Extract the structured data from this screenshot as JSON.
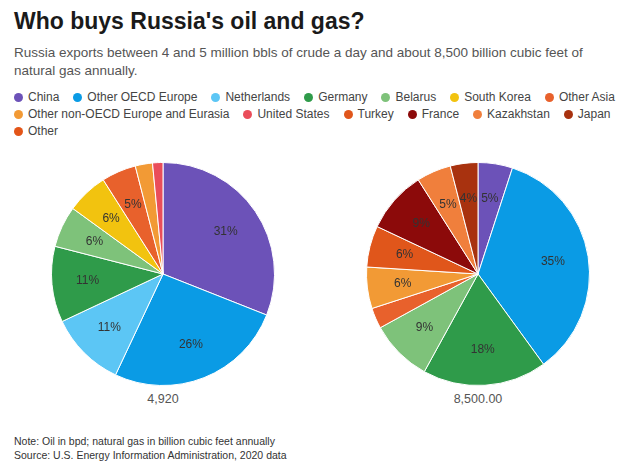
{
  "title": "Who buys Russia's oil and gas?",
  "subtitle": "Russia exports between 4 and 5 million bbls of crude a day and about 8,500 billion cubic feet of natural gas annually.",
  "legend_entries": [
    {
      "name": "China",
      "color": "#6c52b8"
    },
    {
      "name": "Other OECD Europe",
      "color": "#0a9be5"
    },
    {
      "name": "Netherlands",
      "color": "#5cc6f5"
    },
    {
      "name": "Germany",
      "color": "#2f9b4a"
    },
    {
      "name": "Belarus",
      "color": "#7ec27a"
    },
    {
      "name": "South Korea",
      "color": "#f2c30f"
    },
    {
      "name": "Other Asia",
      "color": "#e8612c"
    },
    {
      "name": "Other non-OECD Europe and Eurasia",
      "color": "#f29a35"
    },
    {
      "name": "United States",
      "color": "#ea4d5a"
    },
    {
      "name": "Turkey",
      "color": "#e0561b"
    },
    {
      "name": "France",
      "color": "#8c0a0a"
    },
    {
      "name": "Kazakhstan",
      "color": "#f07f3c"
    },
    {
      "name": "Japan",
      "color": "#a8320f"
    },
    {
      "name": "Other",
      "color": "#e35518"
    }
  ],
  "notes": [
    "Note: Oil in bpd; natural gas in billion cubic feet annually",
    "Source: U.S. Energy Information Administration, 2020 data"
  ],
  "chart_data": [
    {
      "type": "pie",
      "categories": [
        "China",
        "Other OECD Europe",
        "Netherlands",
        "Germany",
        "Belarus",
        "South Korea",
        "Other Asia",
        "Other non-OECD Europe and Eurasia",
        "United States"
      ],
      "values": [
        31,
        26,
        11,
        11,
        6,
        6,
        5,
        2.5,
        1.5
      ],
      "data_labels": true,
      "value_labels": [
        "31%",
        "26%",
        "11%",
        "11%",
        "6%",
        "6%",
        "5%",
        null,
        null
      ],
      "total": {
        "value": 4920,
        "label": "4,920"
      }
    },
    {
      "type": "pie",
      "categories": [
        "China",
        "Other OECD Europe",
        "Germany",
        "Belarus",
        "Other Asia",
        "Other non-OECD Europe and Eurasia",
        "Turkey",
        "France",
        "Kazakhstan",
        "Japan"
      ],
      "values": [
        5,
        35,
        18,
        9,
        3,
        6,
        6,
        9,
        5,
        4
      ],
      "data_labels": true,
      "value_labels": [
        "5%",
        "35%",
        "18%",
        "9%",
        null,
        "6%",
        "6%",
        "9%",
        "5%",
        "4%"
      ],
      "total": {
        "value": 8500,
        "label": "8,500.00"
      }
    }
  ]
}
